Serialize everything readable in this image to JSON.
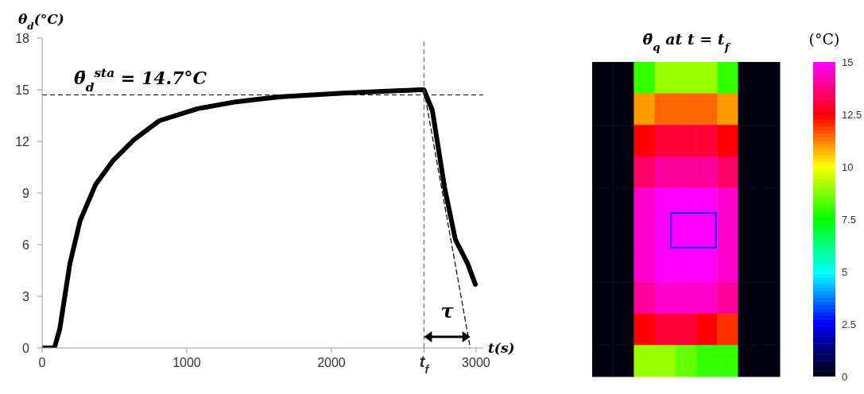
{
  "chart_data": [
    {
      "type": "line",
      "xlabel": "t(s)",
      "ylabel": "θ$_{d}$(°C)",
      "series": [
        {
          "color": "#000000",
          "x": [
            0,
            85,
            122,
            192,
            263,
            370,
            492,
            635,
            810,
            1074,
            1339,
            1550,
            1656,
            2080,
            2608,
            2640,
            2698,
            2783,
            2857,
            2942,
            2995
          ],
          "values": [
            0,
            0,
            1.1,
            4.9,
            7.4,
            9.5,
            10.9,
            12.1,
            13.2,
            13.9,
            14.3,
            14.5,
            14.6,
            14.8,
            15.0,
            15.0,
            13.8,
            9.3,
            6.3,
            4.9,
            3.7
          ]
        },
        {
          "type": "line",
          "color": "#000000",
          "line_style": "dashed",
          "x": [
            2640,
            2960
          ],
          "values": [
            15.0,
            0
          ]
        }
      ],
      "xlim": [
        0,
        3050
      ],
      "xticks": [
        0,
        1000,
        2000,
        {
          "value": 2640,
          "label": "t$_{f}$"
        },
        3000
      ],
      "ylim": [
        0,
        18
      ],
      "yticks": [
        0,
        3,
        6,
        9,
        12,
        15,
        18
      ],
      "ref_lines": [
        {
          "axis": "y",
          "value": 14.7,
          "label": "θ̄$_{d}$$^{sta}$ = 14.7°C",
          "line_style": "dashed",
          "color": "#000000"
        },
        {
          "axis": "x",
          "value": 2640,
          "label": null,
          "line_style": "dashed",
          "color": "#555555"
        }
      ],
      "annotations": [
        "τ"
      ],
      "grid": false,
      "marker": "none"
    },
    {
      "type": "heatmap",
      "title": "θ̄$_{q}$ at t = t$_{f}$",
      "clabel": "(°C)",
      "categories": [
        null,
        null,
        null,
        null,
        null,
        null,
        null,
        null,
        null
      ],
      "y_categories": [
        null,
        null,
        null,
        null,
        null,
        null,
        null,
        null,
        null,
        null
      ],
      "cells": [
        [
          0,
          0,
          8,
          9,
          9,
          9,
          8,
          0,
          0
        ],
        [
          0,
          0,
          11,
          11.5,
          11.5,
          11.5,
          11,
          0,
          0
        ],
        [
          0,
          0,
          12.5,
          13,
          13,
          13,
          12.5,
          0,
          0
        ],
        [
          0,
          0,
          13.5,
          14,
          14,
          14,
          13.5,
          0,
          0
        ],
        [
          0,
          0,
          14.5,
          15,
          15,
          15,
          14.5,
          0,
          0
        ],
        [
          0,
          0,
          14.5,
          15,
          15,
          15,
          14.5,
          0,
          0
        ],
        [
          0,
          0,
          14.5,
          15,
          15,
          15,
          14.5,
          0,
          0
        ],
        [
          0,
          0,
          14,
          14.5,
          14.5,
          14.5,
          14,
          0,
          0
        ],
        [
          0,
          0,
          12.5,
          13,
          13,
          12.5,
          12,
          0,
          0
        ],
        [
          0,
          0,
          9,
          9,
          8.5,
          8,
          8,
          0,
          0
        ]
      ],
      "clim": [
        0,
        15
      ],
      "cticks": [
        0,
        2.5,
        5,
        7.5,
        10,
        12.5,
        15
      ]
    }
  ]
}
